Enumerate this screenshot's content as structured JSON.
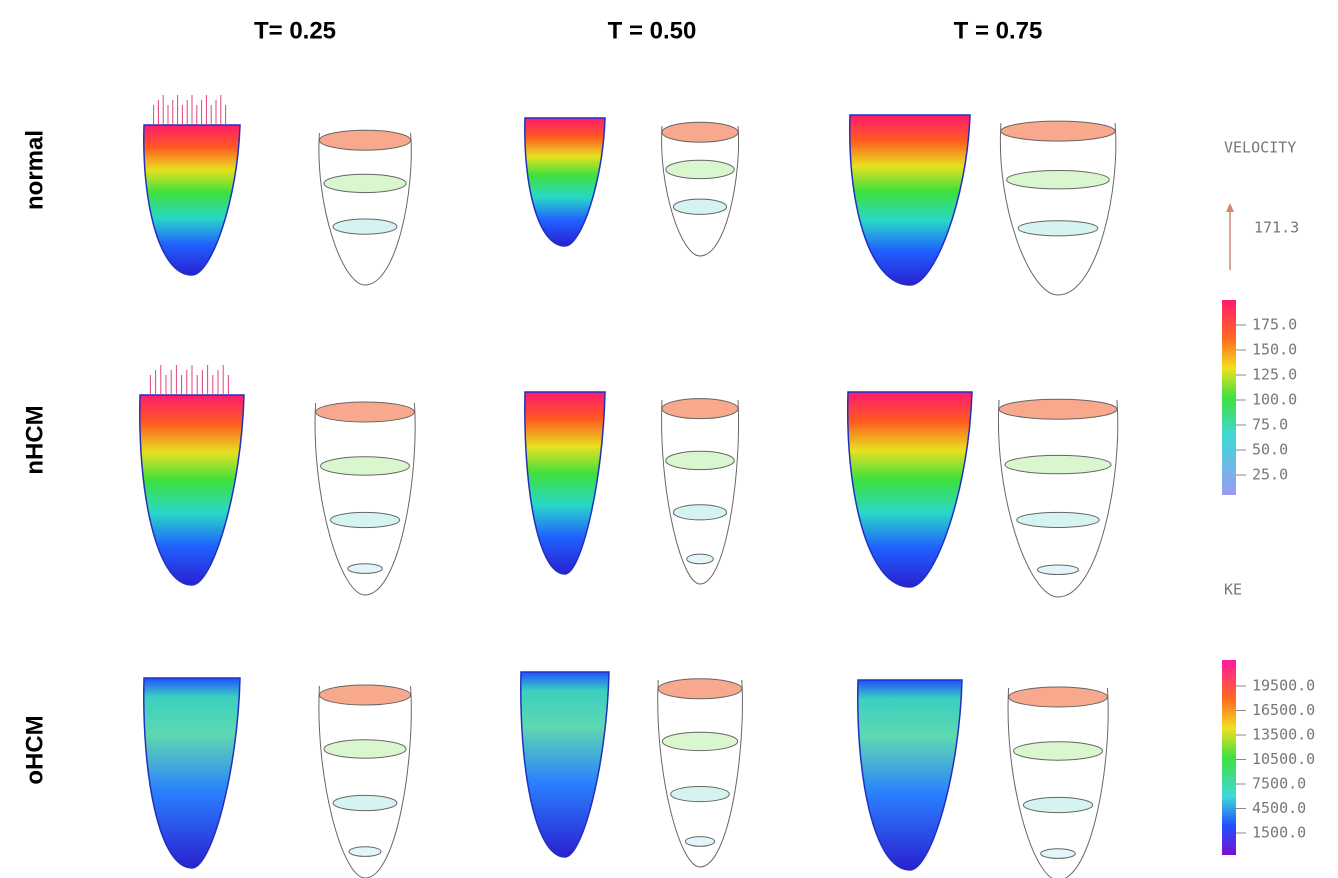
{
  "header": {
    "columns": [
      "T= 0.25",
      "T = 0.50",
      "T = 0.75"
    ]
  },
  "rows": [
    "normal",
    "nHCM",
    "oHCM"
  ],
  "legend": {
    "velocity": {
      "title": "VELOCITY",
      "arrow_label": "171.3",
      "scale": [
        "175.0",
        "150.0",
        "125.0",
        "100.0",
        "75.0",
        "50.0",
        "25.0"
      ]
    },
    "ke": {
      "title": "KE",
      "scale": [
        "19500.0",
        "16500.0",
        "13500.0",
        "10500.0",
        "7500.0",
        "4500.0",
        "1500.0"
      ]
    }
  }
}
